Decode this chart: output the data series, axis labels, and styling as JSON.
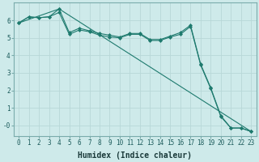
{
  "background_color": "#ceeaea",
  "grid_color": "#b8d8d8",
  "line_color": "#1e7a6e",
  "marker": "D",
  "marker_size": 2,
  "xlabel": "Humidex (Indice chaleur)",
  "xlabel_fontsize": 7,
  "tick_fontsize": 5.5,
  "ylim": [
    -0.6,
    7.0
  ],
  "xlim": [
    -0.5,
    23.5
  ],
  "yticks": [
    0,
    1,
    2,
    3,
    4,
    5,
    6
  ],
  "ytick_labels": [
    "-0",
    "1",
    "2",
    "3",
    "4",
    "5",
    "6"
  ],
  "xticks": [
    0,
    1,
    2,
    3,
    4,
    5,
    6,
    7,
    8,
    9,
    10,
    11,
    12,
    13,
    14,
    15,
    16,
    17,
    18,
    19,
    20,
    21,
    22,
    23
  ],
  "series": [
    {
      "x": [
        0,
        1,
        2,
        3,
        4,
        5,
        6,
        7,
        8,
        9,
        10,
        11,
        12,
        13,
        14,
        15,
        16,
        17,
        18,
        19,
        20,
        21,
        22,
        23
      ],
      "y": [
        5.85,
        6.2,
        6.15,
        6.2,
        6.45,
        5.2,
        5.45,
        5.35,
        5.15,
        5.05,
        5.0,
        5.2,
        5.2,
        4.85,
        4.85,
        5.05,
        5.2,
        5.65,
        3.45,
        2.1,
        0.5,
        -0.15,
        -0.15,
        -0.35
      ]
    },
    {
      "x": [
        0,
        1,
        2,
        3,
        4,
        5,
        6,
        7,
        8,
        9,
        10,
        11,
        12,
        13,
        14,
        15,
        16,
        17,
        18,
        19,
        20,
        21,
        22,
        23
      ],
      "y": [
        5.85,
        6.2,
        6.15,
        6.2,
        6.65,
        5.3,
        5.55,
        5.4,
        5.25,
        5.15,
        5.05,
        5.25,
        5.25,
        4.9,
        4.9,
        5.1,
        5.3,
        5.72,
        3.5,
        2.15,
        0.55,
        -0.15,
        -0.15,
        -0.35
      ]
    },
    {
      "x": [
        0,
        4,
        23
      ],
      "y": [
        5.85,
        6.65,
        -0.35
      ]
    }
  ]
}
